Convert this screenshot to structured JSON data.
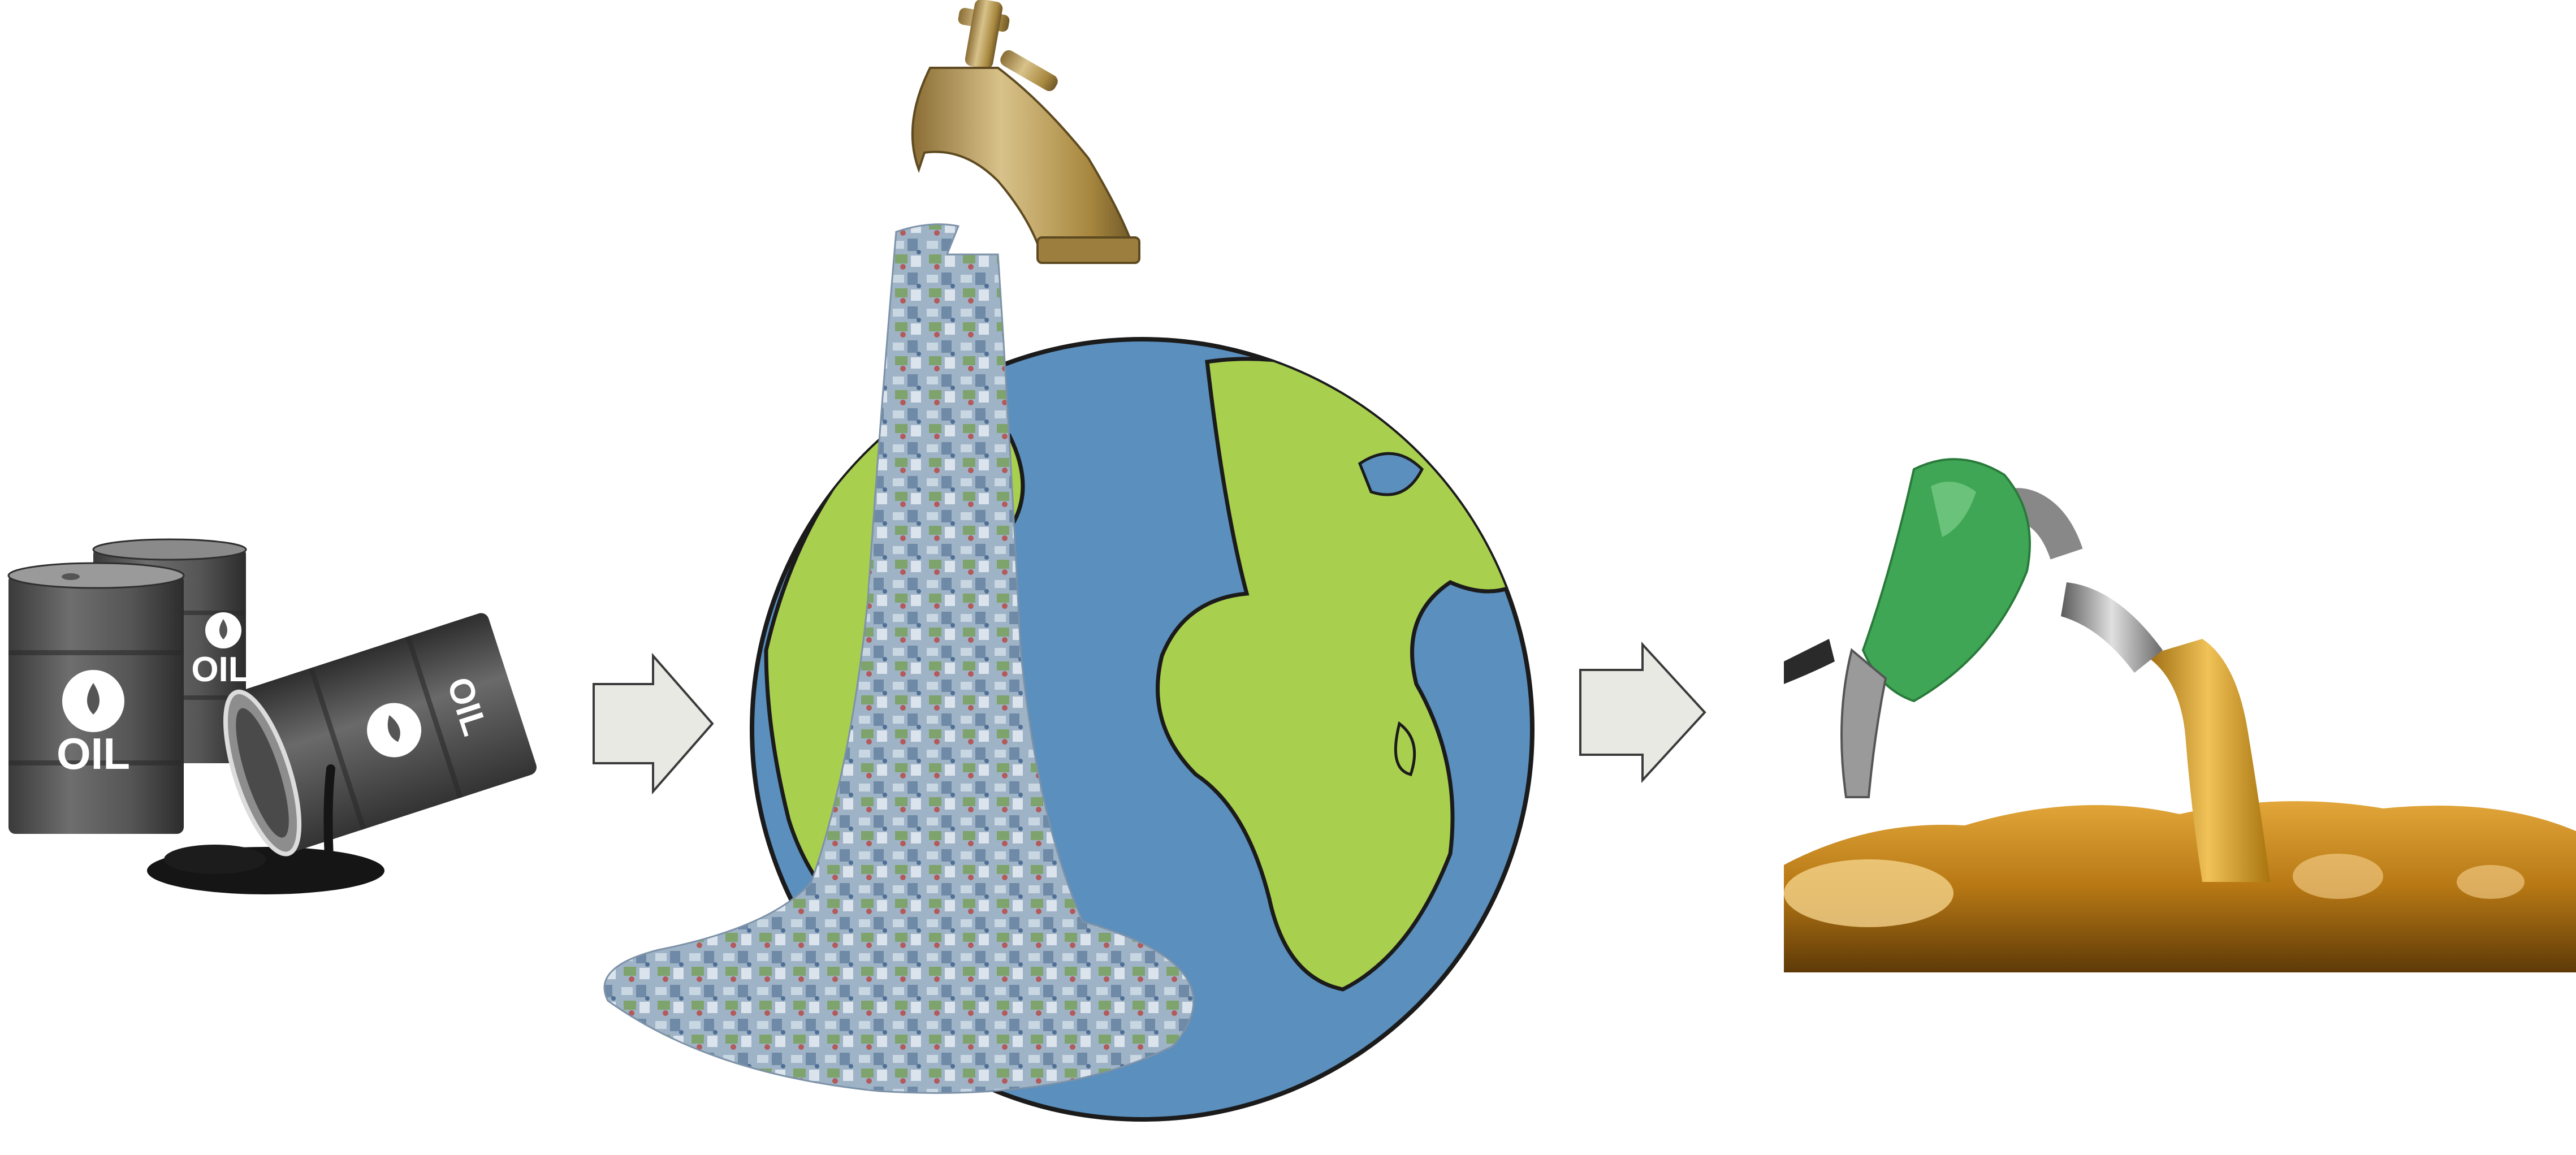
{
  "barrel_labels": {
    "front": "OIL",
    "back": "OIL",
    "tipped": "OIL"
  },
  "colors": {
    "barrel": "#5b5b5b",
    "oil": "#161616",
    "arrow_fill": "#e9e9e4",
    "arrow_stroke": "#3a3a3a",
    "ocean": "#5a8fbe",
    "land": "#a9cf4f",
    "faucet": "#b89a5c",
    "plastic": "#8fa8c0",
    "nozzle": "#3fa655",
    "fuel": "#c48a1a"
  },
  "icons": [
    "oil-barrel-icon",
    "arrow-right-icon",
    "earth-globe-icon",
    "faucet-icon",
    "fuel-nozzle-icon"
  ]
}
